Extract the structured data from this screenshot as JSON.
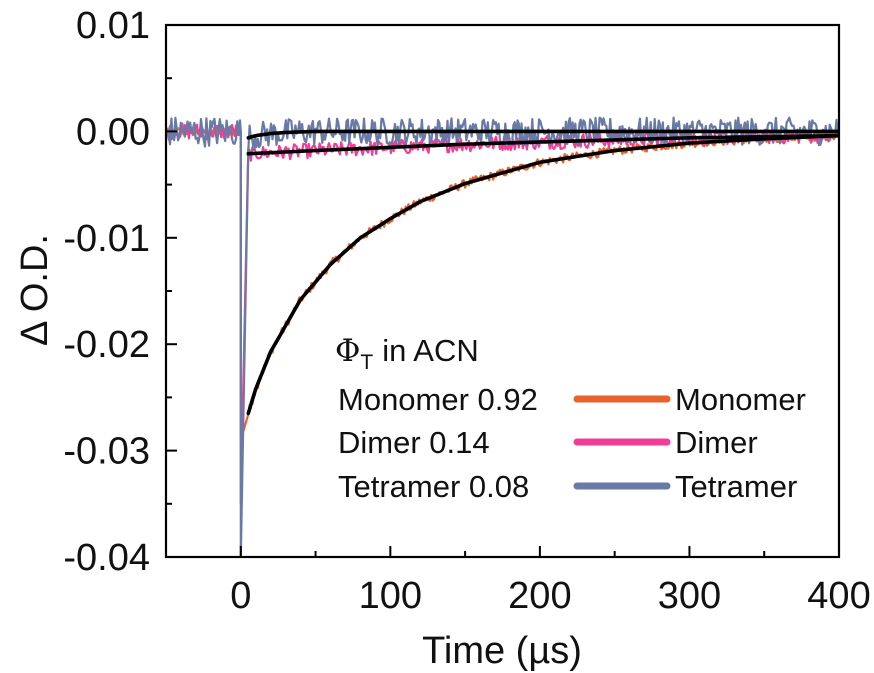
{
  "chart_data": {
    "type": "line",
    "title": "",
    "xlabel": "Time (µs)",
    "ylabel": "Δ O.D.",
    "xlim": [
      -50,
      400
    ],
    "ylim": [
      -0.04,
      0.01
    ],
    "x_ticks": [
      0,
      100,
      200,
      300,
      400
    ],
    "x_tick_labels": [
      "0",
      "100",
      "200",
      "300",
      "400"
    ],
    "y_ticks": [
      0.01,
      0.0,
      -0.01,
      -0.02,
      -0.03,
      -0.04
    ],
    "y_tick_labels": [
      "0.01",
      "0.00",
      "-0.01",
      "-0.02",
      "-0.03",
      "-0.04"
    ],
    "grid": false,
    "legend_position": "bottom-right",
    "series": [
      {
        "name": "Monomer",
        "color": "#e8622c",
        "pre_signal": 0.0,
        "noise": 0.0004,
        "x": [
          0,
          5,
          10,
          20,
          40,
          60,
          80,
          100,
          120,
          150,
          200,
          250,
          300,
          350,
          400
        ],
        "y": [
          -0.029,
          -0.0265,
          -0.0242,
          -0.0207,
          -0.0158,
          -0.0125,
          -0.01,
          -0.0082,
          -0.0066,
          -0.0049,
          -0.0029,
          -0.0018,
          -0.0011,
          -0.0007,
          -0.0004
        ]
      },
      {
        "name": "Dimer",
        "color": "#f23d97",
        "pre_signal": 0.0,
        "noise": 0.0007,
        "x": [
          0,
          5,
          50,
          100,
          150,
          200,
          250,
          300,
          350,
          400
        ],
        "y": [
          -0.035,
          -0.0021,
          -0.0018,
          -0.0015,
          -0.0012,
          -0.001,
          -0.0008,
          -0.0006,
          -0.0005,
          -0.0004
        ]
      },
      {
        "name": "Tetramer",
        "color": "#6a7aa6",
        "pre_signal": 0.0,
        "noise": 0.0013,
        "x": [
          0,
          5,
          10,
          20,
          30,
          50,
          100,
          200,
          300,
          400
        ],
        "y": [
          -0.04,
          -0.0006,
          -0.0004,
          -0.0002,
          -0.0001,
          0.0,
          0.0,
          0.0,
          0.0,
          0.0
        ]
      }
    ],
    "fits": [
      {
        "name": "Monomer fit",
        "color": "#000000",
        "x": [
          5,
          10,
          20,
          40,
          60,
          80,
          100,
          120,
          150,
          200,
          250,
          300,
          350,
          400
        ],
        "y": [
          -0.0265,
          -0.0242,
          -0.0207,
          -0.0158,
          -0.0125,
          -0.01,
          -0.0082,
          -0.0066,
          -0.0049,
          -0.0029,
          -0.0018,
          -0.0011,
          -0.0007,
          -0.0004
        ]
      },
      {
        "name": "Dimer fit",
        "color": "#000000",
        "x": [
          5,
          50,
          100,
          150,
          200,
          250,
          300,
          350,
          400
        ],
        "y": [
          -0.0021,
          -0.0018,
          -0.0015,
          -0.0012,
          -0.001,
          -0.0008,
          -0.0006,
          -0.0005,
          -0.0004
        ]
      },
      {
        "name": "Tetramer fit",
        "color": "#000000",
        "x": [
          5,
          10,
          20,
          30,
          50,
          100,
          200,
          300,
          400
        ],
        "y": [
          -0.0006,
          -0.0004,
          -0.0002,
          -0.0001,
          0.0,
          0.0,
          0.0,
          0.0,
          0.0
        ]
      }
    ],
    "annotation": {
      "header_symbol": "Φ",
      "header_subscript": "T",
      "header_text": "in ACN",
      "rows": [
        "Monomer 0.92",
        "Dimer 0.14",
        "Tetramer 0.08"
      ]
    },
    "legend": [
      "Monomer",
      "Dimer",
      "Tetramer"
    ]
  }
}
